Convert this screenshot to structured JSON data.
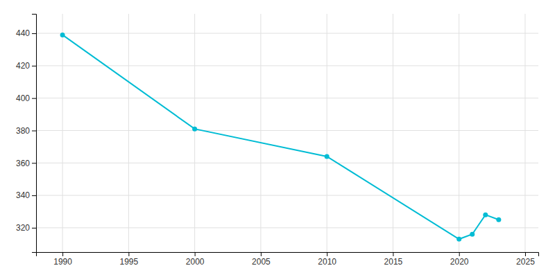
{
  "chart_data": {
    "type": "line",
    "x": [
      1990,
      2000,
      2010,
      2020,
      2021,
      2022,
      2023
    ],
    "values": [
      439,
      381,
      364,
      313,
      316,
      328,
      325
    ],
    "color": "#00bcd4",
    "marker": "circle",
    "xlim": [
      1988,
      2026
    ],
    "ylim": [
      305,
      452
    ],
    "xticks": [
      1990,
      1995,
      2000,
      2005,
      2010,
      2015,
      2020,
      2025
    ],
    "yticks": [
      320,
      340,
      360,
      380,
      400,
      420,
      440
    ],
    "grid": true
  }
}
